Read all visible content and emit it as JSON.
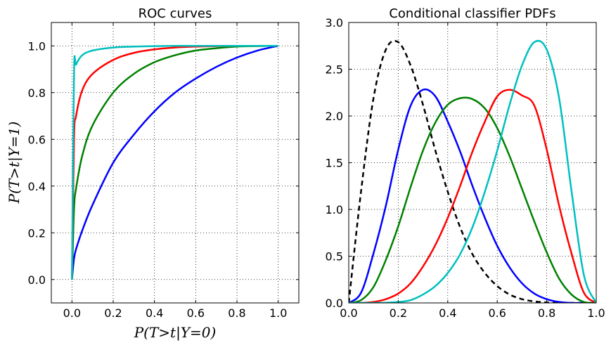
{
  "chart_data": [
    {
      "type": "line",
      "title": "ROC curves",
      "xlabel": "P(T>t|Y=0)",
      "ylabel": "P(T>t|Y=1)",
      "xlim": [
        -0.1,
        1.1
      ],
      "ylim": [
        -0.1,
        1.1
      ],
      "xticks": [
        "0.0",
        "0.2",
        "0.4",
        "0.6",
        "0.8",
        "1.0"
      ],
      "yticks": [
        "0.0",
        "0.2",
        "0.4",
        "0.6",
        "0.8",
        "1.0"
      ],
      "grid": true,
      "x": [
        0.0,
        0.01,
        0.02,
        0.05,
        0.1,
        0.2,
        0.3,
        0.4,
        0.5,
        0.6,
        0.7,
        0.8,
        0.9,
        1.0
      ],
      "series": [
        {
          "color": "#0000ff",
          "values": [
            0.0,
            0.09,
            0.13,
            0.21,
            0.32,
            0.5,
            0.62,
            0.72,
            0.8,
            0.86,
            0.91,
            0.95,
            0.98,
            1.0
          ]
        },
        {
          "color": "#008000",
          "values": [
            0.0,
            0.3,
            0.39,
            0.53,
            0.66,
            0.8,
            0.88,
            0.93,
            0.96,
            0.98,
            0.99,
            0.997,
            0.999,
            1.0
          ]
        },
        {
          "color": "#ff0000",
          "values": [
            0.0,
            0.6,
            0.7,
            0.81,
            0.88,
            0.94,
            0.97,
            0.985,
            0.993,
            0.997,
            0.999,
            1.0,
            1.0,
            1.0
          ]
        },
        {
          "color": "#00bfbf",
          "values": [
            0.0,
            0.88,
            0.92,
            0.96,
            0.98,
            0.993,
            0.997,
            0.999,
            1.0,
            1.0,
            1.0,
            1.0,
            1.0,
            1.0
          ]
        }
      ]
    },
    {
      "type": "line",
      "title": "Conditional classifier PDFs",
      "xlabel": "",
      "ylabel": "",
      "xlim": [
        0.0,
        1.0
      ],
      "ylim": [
        0.0,
        3.0
      ],
      "xticks": [
        "0.0",
        "0.2",
        "0.4",
        "0.6",
        "0.8",
        "1.0"
      ],
      "yticks": [
        "0.0",
        "0.5",
        "1.0",
        "1.5",
        "2.0",
        "2.5",
        "3.0"
      ],
      "grid": true,
      "x": [
        0.0,
        0.05,
        0.1,
        0.15,
        0.2,
        0.25,
        0.3,
        0.35,
        0.4,
        0.45,
        0.5,
        0.55,
        0.6,
        0.65,
        0.7,
        0.75,
        0.8,
        0.85,
        0.9,
        0.95,
        1.0
      ],
      "series": [
        {
          "color": "#000000",
          "dashed": true,
          "values": [
            0.0,
            1.2,
            2.19,
            2.71,
            2.79,
            2.54,
            2.12,
            1.63,
            1.19,
            0.81,
            0.52,
            0.32,
            0.18,
            0.09,
            0.04,
            0.016,
            0.005,
            0.001,
            0.0,
            0.0,
            0.0
          ]
        },
        {
          "color": "#0000ff",
          "values": [
            0.0,
            0.11,
            0.53,
            1.04,
            1.64,
            2.11,
            2.28,
            2.21,
            1.94,
            1.62,
            1.25,
            0.91,
            0.61,
            0.38,
            0.21,
            0.1,
            0.04,
            0.01,
            0.0,
            0.0,
            0.0
          ]
        },
        {
          "color": "#008000",
          "values": [
            0.0,
            0.03,
            0.17,
            0.46,
            0.82,
            1.24,
            1.63,
            1.93,
            2.12,
            2.19,
            2.18,
            2.08,
            1.87,
            1.57,
            1.22,
            0.87,
            0.54,
            0.26,
            0.09,
            0.01,
            0.0
          ]
        },
        {
          "color": "#ff0000",
          "values": [
            0.0,
            0.0,
            0.01,
            0.04,
            0.1,
            0.21,
            0.39,
            0.62,
            0.91,
            1.25,
            1.62,
            1.94,
            2.21,
            2.28,
            2.22,
            2.11,
            1.64,
            1.04,
            0.53,
            0.11,
            0.0
          ]
        },
        {
          "color": "#00bfbf",
          "values": [
            0.0,
            0.0,
            0.0,
            0.002,
            0.01,
            0.03,
            0.09,
            0.18,
            0.32,
            0.52,
            0.81,
            1.19,
            1.63,
            2.12,
            2.54,
            2.79,
            2.71,
            2.19,
            1.2,
            0.3,
            0.0
          ]
        }
      ]
    }
  ]
}
